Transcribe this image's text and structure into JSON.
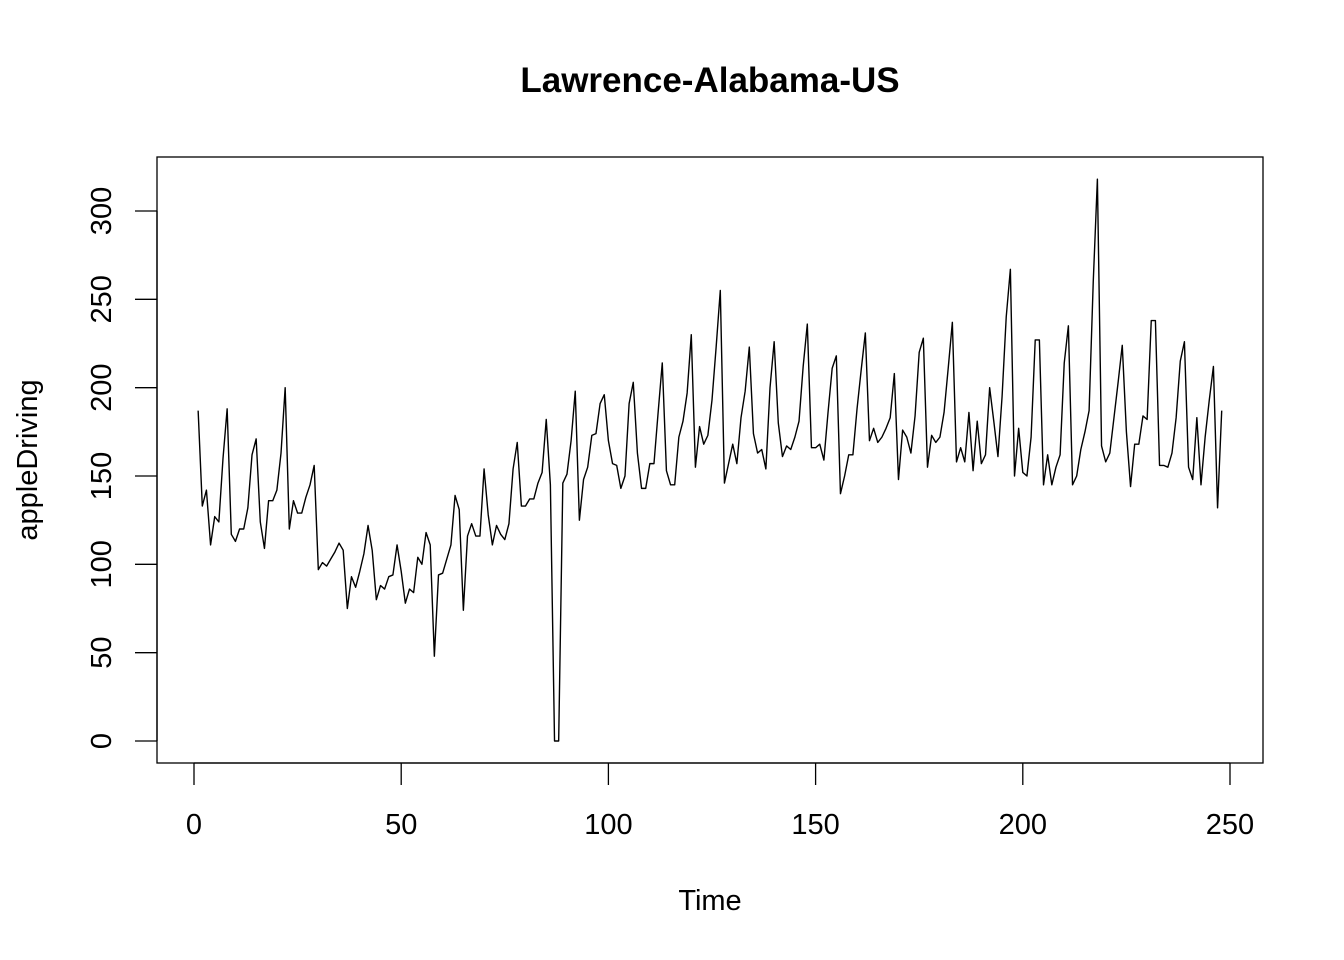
{
  "chart_data": {
    "type": "line",
    "title": "Lawrence-Alabama-US",
    "xlabel": "Time",
    "ylabel": "appleDriving",
    "xlim": [
      0,
      250
    ],
    "ylim": [
      0,
      320
    ],
    "x_ticks": [
      0,
      50,
      100,
      150,
      200,
      250
    ],
    "y_ticks": [
      0,
      50,
      100,
      150,
      200,
      250,
      300
    ],
    "grid": false,
    "legend": "none",
    "line_color": "#000000",
    "x_start": 1,
    "values": [
      187,
      133,
      142,
      111,
      127,
      124,
      160,
      188,
      117,
      113,
      120,
      120,
      132,
      162,
      171,
      124,
      109,
      136,
      136,
      142,
      163,
      200,
      120,
      136,
      129,
      129,
      138,
      145,
      156,
      97,
      101,
      99,
      103,
      107,
      112,
      108,
      75,
      93,
      87,
      96,
      106,
      122,
      108,
      80,
      88,
      86,
      93,
      94,
      111,
      96,
      78,
      86,
      84,
      104,
      100,
      118,
      111,
      48,
      94,
      95,
      103,
      111,
      139,
      131,
      74,
      116,
      123,
      116,
      116,
      154,
      128,
      111,
      122,
      117,
      114,
      123,
      154,
      169,
      133,
      133,
      137,
      137,
      146,
      152,
      182,
      145,
      0,
      0,
      146,
      151,
      170,
      198,
      125,
      148,
      155,
      173,
      174,
      191,
      196,
      170,
      157,
      156,
      143,
      150,
      191,
      203,
      163,
      143,
      143,
      157,
      157,
      186,
      214,
      153,
      145,
      145,
      172,
      181,
      197,
      230,
      155,
      178,
      168,
      173,
      193,
      223,
      255,
      146,
      157,
      168,
      157,
      183,
      198,
      223,
      174,
      163,
      165,
      154,
      200,
      226,
      180,
      161,
      167,
      165,
      172,
      181,
      212,
      236,
      166,
      166,
      168,
      159,
      186,
      211,
      218,
      140,
      150,
      162,
      162,
      188,
      210,
      231,
      170,
      177,
      169,
      172,
      177,
      183,
      208,
      148,
      176,
      172,
      163,
      184,
      220,
      228,
      155,
      173,
      169,
      172,
      186,
      211,
      237,
      158,
      166,
      158,
      186,
      153,
      181,
      157,
      162,
      200,
      181,
      161,
      195,
      240,
      267,
      150,
      177,
      152,
      150,
      172,
      227,
      227,
      145,
      162,
      145,
      155,
      162,
      214,
      235,
      145,
      150,
      165,
      175,
      187,
      260,
      318,
      167,
      158,
      163,
      183,
      203,
      224,
      175,
      144,
      168,
      168,
      184,
      182,
      238,
      238,
      156,
      156,
      155,
      163,
      183,
      215,
      226,
      155,
      148,
      183,
      145,
      172,
      193,
      212,
      132,
      187
    ]
  }
}
